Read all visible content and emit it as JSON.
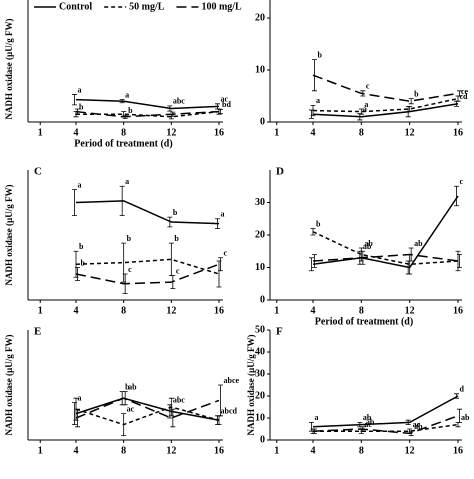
{
  "chart_data": [
    {
      "type": "line",
      "ylabel": "NADH oxidase (µU/g FW)",
      "xlabel": "Period of treatment (d)",
      "x": [
        4,
        8,
        12,
        16
      ],
      "xlim": [
        1,
        16
      ],
      "xticks": [
        1,
        4,
        8,
        12,
        16
      ],
      "ylim": [
        0,
        20
      ],
      "series": [
        {
          "name": "Control",
          "color": "#000000",
          "style": "solid",
          "values": [
            4.3,
            4,
            2.6,
            3
          ],
          "errors": [
            1,
            0.3,
            0.5,
            0.5
          ],
          "letters": [
            "a",
            "a",
            "abc",
            "ac"
          ]
        },
        {
          "name": "50 mg/L",
          "color": "#000000",
          "style": "dash",
          "values": [
            1.5,
            1.5,
            1,
            2
          ],
          "errors": [
            0.5,
            0.5,
            0.4,
            0.5
          ],
          "letters": [
            "b",
            null,
            null,
            "bd"
          ]
        },
        {
          "name": "100 mg/L",
          "color": "#000000",
          "style": "longdash",
          "values": [
            2,
            1,
            1.5,
            2
          ],
          "errors": [
            0.5,
            0.3,
            0.4,
            0.4
          ],
          "letters": [
            null,
            "b",
            null,
            null
          ]
        }
      ]
    },
    {
      "type": "line",
      "x": [
        4,
        8,
        12,
        16
      ],
      "xlim": [
        1,
        16
      ],
      "xticks": [
        1,
        4,
        8,
        12,
        16
      ],
      "ylim": [
        0,
        20
      ],
      "yticks": [
        0,
        10,
        20
      ],
      "series": [
        {
          "color": "#000000",
          "style": "solid",
          "values": [
            1.5,
            1,
            2,
            3.5
          ],
          "errors": [
            0.8,
            0.6,
            1,
            0.5
          ],
          "letters": [
            null,
            "a",
            null,
            "cd"
          ]
        },
        {
          "color": "#000000",
          "style": "dash",
          "values": [
            2.2,
            2,
            2.5,
            4.5
          ],
          "errors": [
            1,
            0.5,
            0.5,
            0.5
          ],
          "letters": [
            "a",
            "a",
            null,
            "ce"
          ]
        },
        {
          "color": "#000000",
          "style": "longdash",
          "values": [
            9,
            5.5,
            4,
            5.5
          ],
          "errors": [
            3,
            0.5,
            0.5,
            0.5
          ],
          "letters": [
            "b",
            "c",
            "b",
            null
          ]
        }
      ]
    },
    {
      "type": "line",
      "label": "C",
      "ylabel": "NADH oxidase (µU/g FW)",
      "x": [
        4,
        8,
        12,
        16
      ],
      "xlim": [
        1,
        16
      ],
      "xticks": [
        1,
        4,
        8,
        12,
        16
      ],
      "ylim": [
        0,
        40
      ],
      "series": [
        {
          "color": "#000000",
          "style": "solid",
          "values": [
            30,
            30.5,
            24,
            23.5
          ],
          "errors": [
            4,
            4.5,
            1.5,
            1.5
          ],
          "letters": [
            "a",
            "a",
            "b",
            "a"
          ]
        },
        {
          "color": "#000000",
          "style": "dash",
          "values": [
            11,
            11.5,
            12.5,
            8
          ],
          "errors": [
            4,
            6,
            5,
            4
          ],
          "letters": [
            "b",
            "b",
            "b",
            null
          ]
        },
        {
          "color": "#000000",
          "style": "longdash",
          "values": [
            8,
            5,
            5.5,
            11
          ],
          "errors": [
            2,
            3,
            2,
            2
          ],
          "letters": [
            "b",
            "c",
            "c",
            "c"
          ]
        }
      ]
    },
    {
      "type": "line",
      "label": "D",
      "xlabel": "Period of treatment (d)",
      "x": [
        4,
        8,
        12,
        16
      ],
      "xlim": [
        1,
        16
      ],
      "xticks": [
        1,
        4,
        8,
        12,
        16
      ],
      "ylim": [
        0,
        40
      ],
      "yticks": [
        0,
        10,
        20,
        30
      ],
      "series": [
        {
          "color": "#000000",
          "style": "solid",
          "values": [
            11,
            13,
            10,
            32
          ],
          "errors": [
            2,
            2,
            2,
            3
          ],
          "letters": [
            null,
            "ab",
            null,
            "c"
          ]
        },
        {
          "color": "#000000",
          "style": "dash",
          "values": [
            21,
            14,
            11,
            12
          ],
          "errors": [
            1,
            2,
            3,
            3
          ],
          "letters": [
            "b",
            "ab",
            null,
            null
          ]
        },
        {
          "color": "#000000",
          "style": "longdash",
          "values": [
            12,
            13,
            14,
            12
          ],
          "errors": [
            2,
            2,
            2,
            2
          ],
          "letters": [
            null,
            null,
            "ab",
            null
          ]
        }
      ]
    },
    {
      "type": "line",
      "label": "E",
      "ylabel": "NADH oxidase (µU/g FW)",
      "x": [
        4,
        8,
        12,
        16
      ],
      "xlim": [
        1,
        16
      ],
      "xticks": [
        1,
        4,
        8,
        12,
        16
      ],
      "ylim": [
        0,
        50
      ],
      "series": [
        {
          "color": "#000000",
          "style": "solid",
          "values": [
            12,
            19,
            13,
            9
          ],
          "errors": [
            5,
            3,
            3,
            2
          ],
          "letters": [
            "a",
            "b",
            "abc",
            "abcd"
          ]
        },
        {
          "color": "#000000",
          "style": "dash",
          "values": [
            14,
            7,
            15,
            9
          ],
          "errors": [
            5,
            5,
            4,
            2
          ],
          "letters": [
            null,
            "ac",
            null,
            null
          ]
        },
        {
          "color": "#000000",
          "style": "longdash",
          "values": [
            10,
            19,
            10,
            18
          ],
          "errors": [
            4,
            3,
            4,
            7
          ],
          "letters": [
            null,
            "ab",
            null,
            "abce"
          ]
        }
      ]
    },
    {
      "type": "line",
      "label": "F",
      "ylabel": "NADH oxidase (µU/g FW)",
      "x": [
        4,
        8,
        12,
        16
      ],
      "xlim": [
        1,
        16
      ],
      "xticks": [
        1,
        4,
        8,
        12,
        16
      ],
      "ylim": [
        0,
        50
      ],
      "yticks": [
        0,
        10,
        20,
        30,
        40,
        50
      ],
      "series": [
        {
          "color": "#000000",
          "style": "solid",
          "values": [
            6,
            7,
            8,
            20
          ],
          "errors": [
            2,
            1,
            1,
            1
          ],
          "letters": [
            "a",
            "ab",
            null,
            "d"
          ]
        },
        {
          "color": "#000000",
          "style": "dash",
          "values": [
            4,
            4,
            4,
            7
          ],
          "errors": [
            1,
            1,
            1,
            1
          ],
          "letters": [
            null,
            "ac",
            "ac",
            "ab"
          ]
        },
        {
          "color": "#000000",
          "style": "longdash",
          "values": [
            4,
            5,
            3,
            11
          ],
          "errors": [
            1,
            1,
            1,
            3
          ],
          "letters": [
            null,
            "ab",
            "ab",
            null
          ]
        }
      ]
    }
  ]
}
